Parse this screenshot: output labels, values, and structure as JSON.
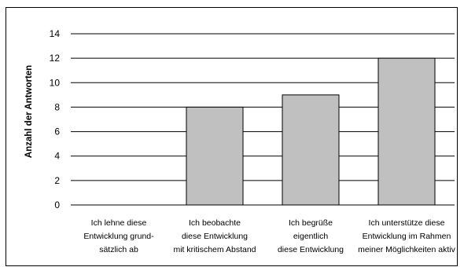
{
  "chart_data": {
    "type": "bar",
    "ylabel": "Anzahl der Antworten",
    "xlabel": "",
    "title": "",
    "ylim": [
      0,
      14
    ],
    "yticks": [
      0,
      2,
      4,
      6,
      8,
      10,
      12,
      14
    ],
    "grid": true,
    "categories": [
      [
        "Ich lehne diese",
        "Entwicklung grund-",
        "sätzlich ab"
      ],
      [
        "Ich beobachte",
        "diese Entwicklung",
        "mit kritischem Abstand"
      ],
      [
        "Ich begrüße",
        "eigentlich",
        "diese Entwicklung"
      ],
      [
        "Ich unterstütze diese",
        "Entwicklung im Rahmen",
        "meiner Möglichkeiten aktiv"
      ]
    ],
    "values": [
      0,
      8,
      9,
      12
    ],
    "bar_color": "#c0c0c0"
  }
}
